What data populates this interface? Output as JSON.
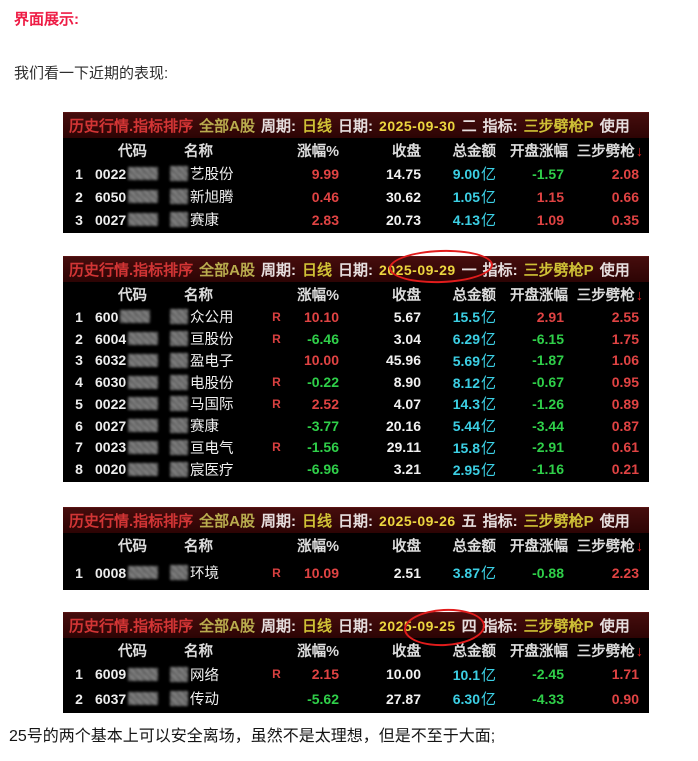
{
  "page": {
    "heading": "界面展示:",
    "intro": "我们看一下近期的表现:",
    "footer": "25号的两个基本上可以安全离场，虽然不是太理想，但是不至于大面;"
  },
  "colors": {
    "up": "#e04343",
    "down": "#2fcf49",
    "cyan": "#3ccfe4",
    "date_yellow": "#ecd63f",
    "yellow": "#cfc136",
    "scope_yellow": "#b9ac4e",
    "title_red": "#d23535",
    "heading_red": "#ee1c45",
    "circle_red": "#e11c1c"
  },
  "table": {
    "title": {
      "app": "历史行情.指标排序",
      "scope": "全部A股",
      "period_label": "周期:",
      "period": "日线",
      "date_label": "日期:",
      "indicator_label": "指标:",
      "indicator": "三步劈枪P",
      "trailing": "使用"
    },
    "columns": [
      "代码",
      "名称",
      "涨幅%",
      "收盘",
      "总金额",
      "开盘涨幅",
      "三步劈枪"
    ],
    "sort_icon": "↓",
    "r_flag": "R",
    "amount_unit": "亿"
  },
  "panels": [
    {
      "date": "2025-09-30",
      "weekday": "二",
      "circled": false,
      "rows": [
        {
          "num": "1",
          "code": "0022",
          "name": "艺股份",
          "r": false,
          "pct": "9.99",
          "pct_dir": "up",
          "close": "14.75",
          "amount": "9.00",
          "open": "-1.57",
          "open_dir": "down",
          "ind": "2.08"
        },
        {
          "num": "2",
          "code": "6050",
          "name": "新旭腾",
          "r": false,
          "pct": "0.46",
          "pct_dir": "up",
          "close": "30.62",
          "amount": "1.05",
          "open": "1.15",
          "open_dir": "up",
          "ind": "0.66"
        },
        {
          "num": "3",
          "code": "0027",
          "name": "赛康",
          "r": false,
          "pct": "2.83",
          "pct_dir": "up",
          "close": "20.73",
          "amount": "4.13",
          "open": "1.09",
          "open_dir": "up",
          "ind": "0.35"
        }
      ]
    },
    {
      "date": "2025-09-29",
      "weekday": "一",
      "circled": true,
      "rows": [
        {
          "num": "1",
          "code": "600",
          "name": "众公用",
          "r": true,
          "pct": "10.10",
          "pct_dir": "up",
          "close": "5.67",
          "amount": "15.5",
          "open": "2.91",
          "open_dir": "up",
          "ind": "2.55"
        },
        {
          "num": "2",
          "code": "6004",
          "name": "亘股份",
          "r": true,
          "pct": "-6.46",
          "pct_dir": "down",
          "close": "3.04",
          "amount": "6.29",
          "open": "-6.15",
          "open_dir": "down",
          "ind": "1.75"
        },
        {
          "num": "3",
          "code": "6032",
          "name": "盈电子",
          "r": false,
          "pct": "10.00",
          "pct_dir": "up",
          "close": "45.96",
          "amount": "5.69",
          "open": "-1.87",
          "open_dir": "down",
          "ind": "1.06"
        },
        {
          "num": "4",
          "code": "6030",
          "name": "电股份",
          "r": true,
          "pct": "-0.22",
          "pct_dir": "down",
          "close": "8.90",
          "amount": "8.12",
          "open": "-0.67",
          "open_dir": "down",
          "ind": "0.95"
        },
        {
          "num": "5",
          "code": "0022",
          "name": "马国际",
          "r": true,
          "pct": "2.52",
          "pct_dir": "up",
          "close": "4.07",
          "amount": "14.3",
          "open": "-1.26",
          "open_dir": "down",
          "ind": "0.89"
        },
        {
          "num": "6",
          "code": "0027",
          "name": "赛康",
          "r": false,
          "pct": "-3.77",
          "pct_dir": "down",
          "close": "20.16",
          "amount": "5.44",
          "open": "-3.44",
          "open_dir": "down",
          "ind": "0.87"
        },
        {
          "num": "7",
          "code": "0023",
          "name": "亘电气",
          "r": true,
          "pct": "-1.56",
          "pct_dir": "down",
          "close": "29.11",
          "amount": "15.8",
          "open": "-2.91",
          "open_dir": "down",
          "ind": "0.61"
        },
        {
          "num": "8",
          "code": "0020",
          "name": "宸医疗",
          "r": false,
          "pct": "-6.96",
          "pct_dir": "down",
          "close": "3.21",
          "amount": "2.95",
          "open": "-1.16",
          "open_dir": "down",
          "ind": "0.21"
        }
      ]
    },
    {
      "date": "2025-09-26",
      "weekday": "五",
      "circled": false,
      "rows": [
        {
          "num": "1",
          "code": "0008",
          "name": "环境",
          "r": true,
          "pct": "10.09",
          "pct_dir": "up",
          "close": "2.51",
          "amount": "3.87",
          "open": "-0.88",
          "open_dir": "down",
          "ind": "2.23"
        }
      ]
    },
    {
      "date": "2025-09-25",
      "weekday": "四",
      "circled": true,
      "rows": [
        {
          "num": "1",
          "code": "6009",
          "name": "网络",
          "r": true,
          "pct": "2.15",
          "pct_dir": "up",
          "close": "10.00",
          "amount": "10.1",
          "open": "-2.45",
          "open_dir": "down",
          "ind": "1.71"
        },
        {
          "num": "2",
          "code": "6037",
          "name": "传动",
          "r": false,
          "pct": "-5.62",
          "pct_dir": "down",
          "close": "27.87",
          "amount": "6.30",
          "open": "-4.33",
          "open_dir": "down",
          "ind": "0.90"
        }
      ]
    }
  ]
}
